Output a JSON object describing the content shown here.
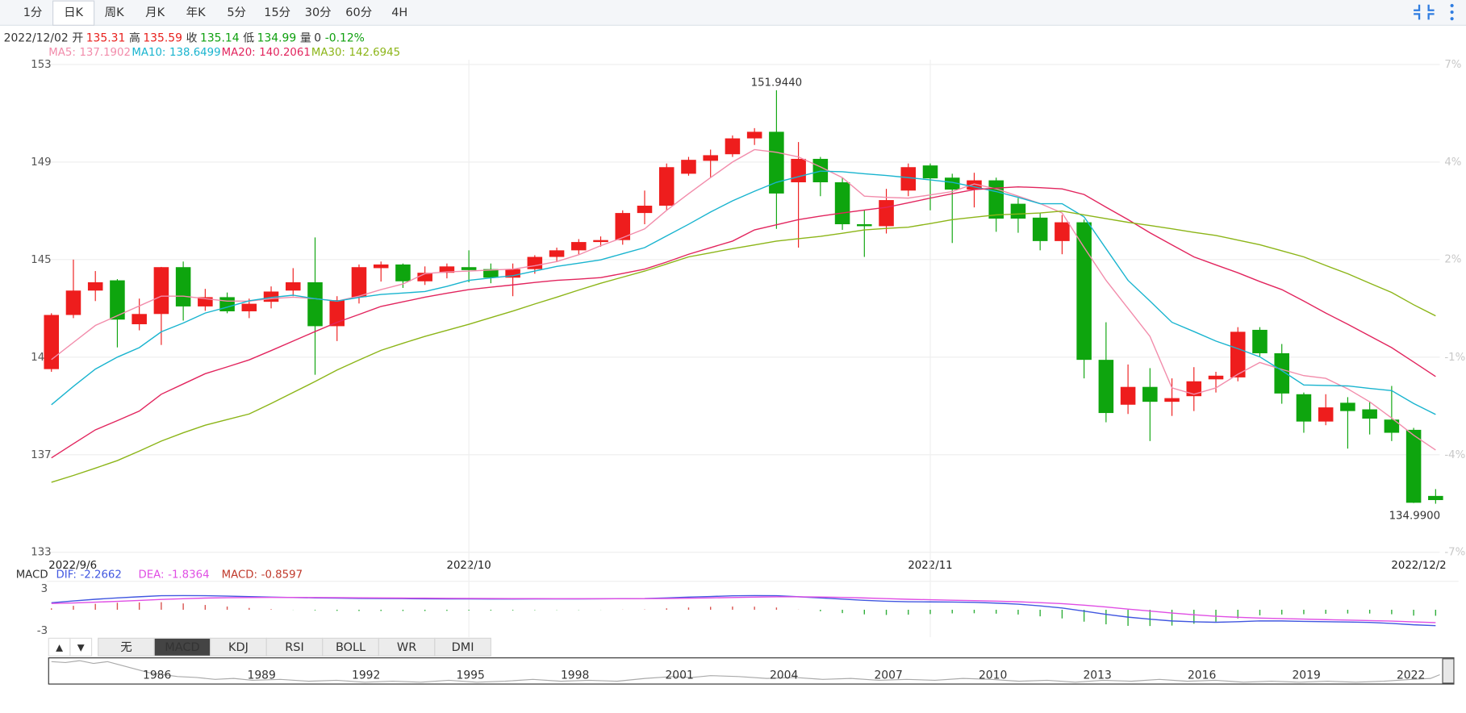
{
  "toolbar": {
    "tabs": [
      "1分",
      "日K",
      "周K",
      "月K",
      "年K",
      "5分",
      "15分",
      "30分",
      "60分",
      "4H"
    ],
    "active_tab": 1
  },
  "quote": {
    "date": "2022/12/02",
    "labels": [
      "开",
      "高",
      "收",
      "低",
      "量"
    ],
    "volume": 0,
    "change": "-0.12%"
  },
  "chart_data": {
    "type": "candlestick",
    "categories": [
      "2022/9/6",
      null,
      null,
      null,
      null,
      null,
      null,
      null,
      null,
      null,
      null,
      null,
      null,
      null,
      null,
      null,
      null,
      null,
      null,
      "2022/10",
      null,
      null,
      null,
      null,
      null,
      null,
      null,
      null,
      null,
      null,
      null,
      null,
      null,
      null,
      null,
      null,
      null,
      null,
      null,
      null,
      "2022/11",
      null,
      null,
      null,
      null,
      null,
      null,
      null,
      null,
      null,
      null,
      null,
      null,
      null,
      null,
      null,
      null,
      null,
      null,
      null,
      null,
      null,
      null,
      "2022/12/2"
    ],
    "open": [
      140.51,
      142.73,
      143.73,
      144.15,
      142.35,
      142.77,
      144.69,
      143.08,
      143.46,
      142.88,
      143.27,
      143.73,
      144.07,
      142.27,
      143.46,
      144.65,
      144.8,
      144.11,
      144.46,
      144.69,
      144.61,
      144.26,
      144.61,
      145.11,
      145.38,
      145.72,
      145.8,
      146.91,
      147.21,
      148.52,
      149.05,
      149.32,
      149.97,
      150.24,
      148.17,
      149.13,
      148.17,
      146.45,
      146.37,
      147.83,
      148.86,
      148.36,
      147.87,
      148.25,
      147.29,
      146.72,
      145.76,
      146.53,
      140.89,
      139.05,
      139.78,
      139.17,
      139.4,
      140.09,
      140.17,
      142.12,
      141.16,
      139.48,
      138.36,
      139.13,
      138.86,
      138.44,
      138.02,
      135.31
    ],
    "high": [
      142.8,
      145.0,
      144.53,
      144.2,
      143.4,
      144.7,
      144.92,
      143.8,
      143.65,
      143.4,
      143.9,
      144.65,
      145.91,
      143.5,
      144.8,
      144.92,
      144.84,
      144.72,
      144.84,
      145.38,
      144.84,
      144.84,
      145.18,
      145.49,
      145.84,
      145.95,
      147.02,
      147.83,
      148.94,
      149.21,
      149.51,
      150.09,
      150.39,
      151.944,
      149.82,
      149.21,
      148.36,
      147.02,
      147.9,
      148.94,
      148.94,
      148.52,
      148.56,
      148.36,
      147.52,
      146.91,
      146.83,
      146.64,
      142.43,
      140.7,
      140.55,
      140.13,
      140.59,
      140.4,
      142.23,
      142.23,
      141.54,
      139.55,
      139.48,
      139.36,
      139.17,
      139.82,
      138.1,
      135.59
    ],
    "low": [
      140.4,
      142.6,
      143.3,
      141.4,
      142.1,
      141.5,
      142.5,
      142.9,
      142.8,
      142.6,
      143.0,
      143.5,
      140.28,
      141.66,
      143.2,
      144.1,
      143.84,
      143.96,
      144.23,
      144.07,
      144.03,
      143.5,
      144.42,
      144.92,
      145.22,
      145.53,
      145.61,
      146.45,
      147.02,
      148.44,
      148.36,
      149.21,
      149.7,
      146.26,
      145.49,
      147.6,
      146.22,
      145.11,
      146.07,
      147.6,
      147.02,
      145.68,
      147.14,
      146.14,
      146.1,
      145.38,
      145.22,
      140.13,
      138.33,
      138.67,
      137.56,
      138.59,
      138.79,
      139.55,
      140.01,
      141.0,
      139.09,
      137.9,
      138.21,
      137.25,
      137.83,
      137.56,
      135.02,
      134.99
    ],
    "close": [
      142.73,
      143.73,
      144.07,
      142.54,
      142.77,
      144.69,
      143.08,
      143.46,
      142.88,
      143.19,
      143.69,
      144.07,
      142.27,
      143.34,
      144.69,
      144.8,
      144.11,
      144.46,
      144.72,
      144.57,
      144.26,
      144.61,
      145.11,
      145.38,
      145.72,
      145.8,
      146.91,
      147.21,
      148.79,
      149.09,
      149.28,
      149.97,
      150.24,
      147.71,
      149.13,
      148.17,
      146.45,
      146.37,
      147.44,
      148.79,
      148.33,
      147.87,
      148.25,
      146.68,
      146.68,
      145.76,
      146.53,
      140.89,
      138.71,
      139.78,
      139.17,
      139.32,
      140.01,
      140.24,
      142.04,
      141.16,
      139.51,
      138.36,
      138.94,
      138.79,
      138.48,
      137.9,
      135.03,
      135.14
    ],
    "up_color": "#ee1d1d",
    "down_color": "#0ea50e",
    "extremes": {
      "max": "151.9440",
      "min": "134.9900"
    },
    "ylim": [
      133,
      153
    ],
    "yticks": [
      153,
      149,
      145,
      141,
      137,
      133
    ],
    "y2lim": [
      -6.79,
      7.22
    ],
    "y2ticks": [
      {
        "value": 7.22,
        "label": "7%"
      },
      {
        "value": 4.42,
        "label": "4%"
      },
      {
        "value": 1.62,
        "label": "2%"
      },
      {
        "value": -1.19,
        "label": "-1%"
      },
      {
        "value": -3.99,
        "label": "-4%"
      },
      {
        "value": -6.79,
        "label": "-7%"
      }
    ],
    "grid": true,
    "overlays": [
      {
        "name": "MA5:",
        "color": "#f28cab",
        "values": [
          140.9,
          141.6,
          142.3,
          142.7,
          143.1,
          143.5,
          143.5,
          143.4,
          143.3,
          143.3,
          143.4,
          143.46,
          143.4,
          143.3,
          143.5,
          143.77,
          144.0,
          144.42,
          144.5,
          144.53,
          144.57,
          144.61,
          144.75,
          144.92,
          145.2,
          145.57,
          145.9,
          146.26,
          147.02,
          147.7,
          148.36,
          149.0,
          149.51,
          149.4,
          149.21,
          148.8,
          148.36,
          147.6,
          147.55,
          147.52,
          147.65,
          147.79,
          148.1,
          147.9,
          147.6,
          147.3,
          146.91,
          145.5,
          144.15,
          143.0,
          141.85,
          139.74,
          139.48,
          139.74,
          140.3,
          140.78,
          140.5,
          140.24,
          140.13,
          139.7,
          139.17,
          138.5,
          137.8,
          137.1902
        ]
      },
      {
        "name": "MA10:",
        "color": "#19b4cf",
        "values": [
          139.05,
          139.8,
          140.51,
          141.0,
          141.39,
          142.04,
          142.4,
          142.81,
          143.05,
          143.31,
          143.45,
          143.54,
          143.4,
          143.3,
          143.45,
          143.57,
          143.63,
          143.69,
          143.9,
          144.15,
          144.25,
          144.34,
          144.53,
          144.72,
          144.85,
          144.99,
          145.24,
          145.49,
          145.97,
          146.45,
          146.95,
          147.41,
          147.8,
          148.17,
          148.4,
          148.63,
          148.6,
          148.52,
          148.45,
          148.36,
          148.27,
          148.17,
          147.98,
          147.79,
          147.55,
          147.29,
          147.29,
          146.75,
          145.45,
          144.15,
          143.3,
          142.43,
          142.05,
          141.66,
          141.35,
          141.01,
          140.45,
          139.86,
          139.84,
          139.82,
          139.72,
          139.63,
          139.1,
          138.6499
        ]
      },
      {
        "name": "MA20:",
        "color": "#e2255e",
        "values": [
          136.87,
          137.45,
          138.02,
          138.4,
          138.79,
          139.48,
          139.9,
          140.32,
          140.6,
          140.89,
          141.27,
          141.66,
          142.05,
          142.43,
          142.75,
          143.08,
          143.27,
          143.46,
          143.62,
          143.77,
          143.87,
          143.96,
          144.06,
          144.15,
          144.2,
          144.26,
          144.43,
          144.61,
          144.9,
          145.22,
          145.49,
          145.76,
          146.22,
          146.43,
          146.64,
          146.78,
          146.91,
          147.03,
          147.14,
          147.33,
          147.52,
          147.7,
          147.87,
          147.93,
          147.98,
          147.95,
          147.9,
          147.67,
          147.15,
          146.64,
          146.1,
          145.6,
          145.11,
          144.78,
          144.46,
          144.1,
          143.77,
          143.3,
          142.81,
          142.35,
          141.87,
          141.39,
          140.8,
          140.2061
        ]
      },
      {
        "name": "MA30:",
        "color": "#8cb518",
        "values": [
          135.87,
          136.15,
          136.45,
          136.76,
          137.15,
          137.56,
          137.9,
          138.21,
          138.44,
          138.67,
          139.1,
          139.55,
          140.0,
          140.47,
          140.88,
          141.28,
          141.57,
          141.85,
          142.1,
          142.35,
          142.62,
          142.89,
          143.18,
          143.46,
          143.75,
          144.03,
          144.28,
          144.53,
          144.82,
          145.11,
          145.28,
          145.45,
          145.6,
          145.76,
          145.86,
          145.95,
          146.08,
          146.22,
          146.28,
          146.33,
          146.48,
          146.64,
          146.74,
          146.83,
          146.87,
          146.91,
          146.99,
          146.83,
          146.68,
          146.53,
          146.4,
          146.26,
          146.12,
          145.99,
          145.8,
          145.61,
          145.36,
          145.11,
          144.76,
          144.42,
          144.03,
          143.65,
          143.15,
          142.6945
        ]
      }
    ],
    "macd": {
      "name": "MACD",
      "ylim": [
        -3.8,
        3.8
      ],
      "yticks": [
        3,
        -3
      ],
      "series": [
        {
          "name": "DIF:",
          "color": "#4157e0",
          "values": [
            1.0,
            1.25,
            1.5,
            1.7,
            1.85,
            2.0,
            2.02,
            2.0,
            1.95,
            1.88,
            1.8,
            1.75,
            1.7,
            1.65,
            1.62,
            1.6,
            1.58,
            1.56,
            1.55,
            1.55,
            1.54,
            1.54,
            1.55,
            1.55,
            1.55,
            1.56,
            1.58,
            1.6,
            1.7,
            1.8,
            1.9,
            1.98,
            2.02,
            2.0,
            1.85,
            1.7,
            1.52,
            1.35,
            1.22,
            1.15,
            1.12,
            1.1,
            1.05,
            0.95,
            0.8,
            0.55,
            0.25,
            -0.2,
            -0.65,
            -1.05,
            -1.35,
            -1.6,
            -1.72,
            -1.78,
            -1.7,
            -1.58,
            -1.6,
            -1.66,
            -1.7,
            -1.75,
            -1.82,
            -1.95,
            -2.15,
            -2.2662
          ]
        },
        {
          "name": "DEA:",
          "color": "#e04ee4",
          "values": [
            0.9,
            0.97,
            1.08,
            1.2,
            1.33,
            1.46,
            1.57,
            1.66,
            1.72,
            1.75,
            1.76,
            1.76,
            1.75,
            1.73,
            1.71,
            1.69,
            1.67,
            1.65,
            1.63,
            1.61,
            1.6,
            1.59,
            1.58,
            1.57,
            1.57,
            1.57,
            1.57,
            1.58,
            1.6,
            1.64,
            1.69,
            1.75,
            1.8,
            1.84,
            1.84,
            1.81,
            1.76,
            1.68,
            1.59,
            1.5,
            1.43,
            1.36,
            1.3,
            1.23,
            1.14,
            1.02,
            0.87,
            0.65,
            0.39,
            0.1,
            -0.19,
            -0.47,
            -0.72,
            -0.93,
            -1.08,
            -1.18,
            -1.26,
            -1.34,
            -1.41,
            -1.48,
            -1.55,
            -1.63,
            -1.73,
            -1.8364
          ]
        }
      ],
      "histogram": {
        "name": "MACD:",
        "color": "#c0392b",
        "up_color": "#d9534f",
        "down_color": "#2fae3a",
        "values": [
          0.2,
          0.56,
          0.84,
          1.0,
          1.04,
          1.08,
          0.9,
          0.68,
          0.46,
          0.26,
          0.08,
          -0.02,
          -0.1,
          -0.16,
          -0.18,
          -0.18,
          -0.18,
          -0.18,
          -0.16,
          -0.12,
          -0.12,
          -0.1,
          -0.06,
          -0.04,
          -0.04,
          -0.02,
          0.02,
          0.04,
          0.2,
          0.32,
          0.42,
          0.46,
          0.44,
          0.32,
          0.02,
          -0.22,
          -0.48,
          -0.66,
          -0.74,
          -0.7,
          -0.62,
          -0.52,
          -0.5,
          -0.56,
          -0.68,
          -0.94,
          -1.24,
          -1.7,
          -2.08,
          -2.3,
          -2.32,
          -2.26,
          -2.0,
          -1.7,
          -1.24,
          -0.8,
          -0.68,
          -0.64,
          -0.58,
          -0.54,
          -0.54,
          -0.64,
          -0.84,
          -0.8597
        ]
      }
    }
  },
  "indicator_tabs": {
    "arrows": [
      "▲",
      "▼"
    ],
    "tabs": [
      "无",
      "MACD",
      "KDJ",
      "RSI",
      "BOLL",
      "WR",
      "DMI"
    ],
    "active_tab": 1
  },
  "navigator": {
    "years": [
      "1986",
      "1989",
      "1992",
      "1995",
      "1998",
      "2001",
      "2004",
      "2007",
      "2010",
      "2013",
      "2016",
      "2019",
      "2022"
    ]
  }
}
